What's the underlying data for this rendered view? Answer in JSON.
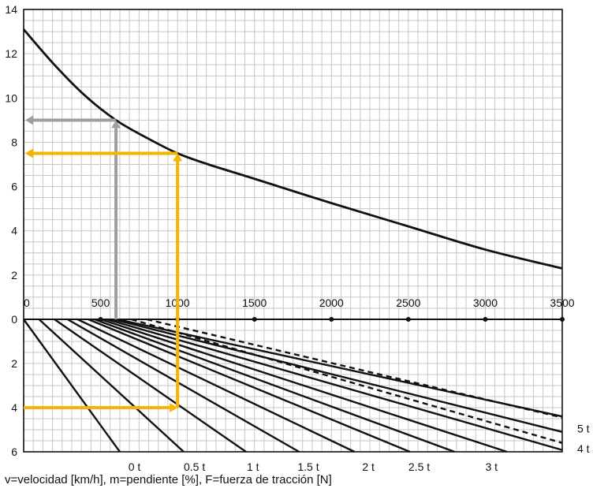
{
  "chart_data": [
    {
      "type": "line",
      "title": "",
      "xlabel": "F",
      "ylabel": "v",
      "xlim": [
        0,
        3500
      ],
      "ylim": [
        0,
        14
      ],
      "x_ticks": [
        "0",
        "500",
        "1000",
        "1500",
        "2000",
        "2500",
        "3000",
        "3500"
      ],
      "y_ticks": [
        "0",
        "2",
        "4",
        "6",
        "8",
        "10",
        "12",
        "14"
      ],
      "grid": true,
      "series": [
        {
          "color": "#111111",
          "style": "solid",
          "x": [
            0,
            200,
            400,
            600,
            800,
            1000,
            1200,
            1500,
            2000,
            2500,
            3000,
            3500
          ],
          "y": [
            13.1,
            11.5,
            10.1,
            9.0,
            8.2,
            7.5,
            7.0,
            6.35,
            5.25,
            4.2,
            3.15,
            2.3
          ]
        }
      ],
      "guides": [
        {
          "color": "#9e9e9e",
          "x": 600,
          "y": 9.0
        },
        {
          "color": "#f5b400",
          "x": 1000,
          "y": 7.5
        }
      ]
    },
    {
      "type": "line",
      "title": "",
      "xlabel": "F",
      "ylabel": "m",
      "xlim": [
        0,
        3500
      ],
      "ylim": [
        6,
        0
      ],
      "x_ticks": [
        "0",
        "500",
        "1000",
        "1500",
        "2000",
        "2500",
        "3000",
        "3500"
      ],
      "y_ticks": [
        "0",
        "2",
        "4",
        "6"
      ],
      "markers_x": [
        500,
        1000,
        1500,
        2000,
        2500,
        3000,
        3500
      ],
      "grid": true,
      "series": [
        {
          "color": "#111111",
          "style": "solid",
          "x": [
            0,
            625
          ],
          "y": [
            0,
            6
          ]
        },
        {
          "color": "#111111",
          "style": "solid",
          "x": [
            100,
            1040
          ],
          "y": [
            0,
            6
          ]
        },
        {
          "color": "#111111",
          "style": "solid",
          "x": [
            200,
            1445
          ],
          "y": [
            0,
            6
          ]
        },
        {
          "color": "#111111",
          "style": "solid",
          "x": [
            285,
            1790
          ],
          "y": [
            0,
            6
          ]
        },
        {
          "color": "#111111",
          "style": "solid",
          "x": [
            350,
            2150
          ],
          "y": [
            0,
            6
          ]
        },
        {
          "color": "#111111",
          "style": "solid",
          "x": [
            420,
            2510
          ],
          "y": [
            0,
            6
          ]
        },
        {
          "color": "#111111",
          "style": "solid",
          "x": [
            460,
            2800
          ],
          "y": [
            0,
            6
          ]
        },
        {
          "color": "#111111",
          "style": "solid",
          "x": [
            500,
            3140
          ],
          "y": [
            0,
            6
          ]
        },
        {
          "color": "#111111",
          "style": "solid",
          "x": [
            540,
            3500
          ],
          "y": [
            0,
            5.92
          ]
        },
        {
          "color": "#111111",
          "style": "solid",
          "x": [
            580,
            3500
          ],
          "y": [
            0,
            5.1
          ]
        },
        {
          "color": "#111111",
          "style": "solid",
          "x": [
            610,
            3500
          ],
          "y": [
            0,
            4.4
          ]
        },
        {
          "color": "#111111",
          "style": "dashed",
          "x": [
            700,
            3500
          ],
          "y": [
            0,
            5.6
          ]
        },
        {
          "color": "#111111",
          "style": "dashed",
          "x": [
            800,
            3500
          ],
          "y": [
            0,
            4.45
          ]
        }
      ],
      "guides": [
        {
          "color": "#f5b400",
          "x": 1000,
          "y": 4.0
        }
      ],
      "annotations": [
        {
          "text": "0 t",
          "x": 720
        },
        {
          "text": "0.5 t",
          "x": 1110
        },
        {
          "text": "1 t",
          "x": 1490
        },
        {
          "text": "1.5 t",
          "x": 1850
        },
        {
          "text": "2 t",
          "x": 2240
        },
        {
          "text": "2.5 t",
          "x": 2570
        },
        {
          "text": "3 t",
          "x": 3040
        },
        {
          "text": "5 t",
          "y": 4.95
        },
        {
          "text": "4 t",
          "y": 5.85
        }
      ]
    }
  ],
  "caption": "v=velocidad [km/h], m=pendiente [%], F=fuerza de tracción [N]"
}
